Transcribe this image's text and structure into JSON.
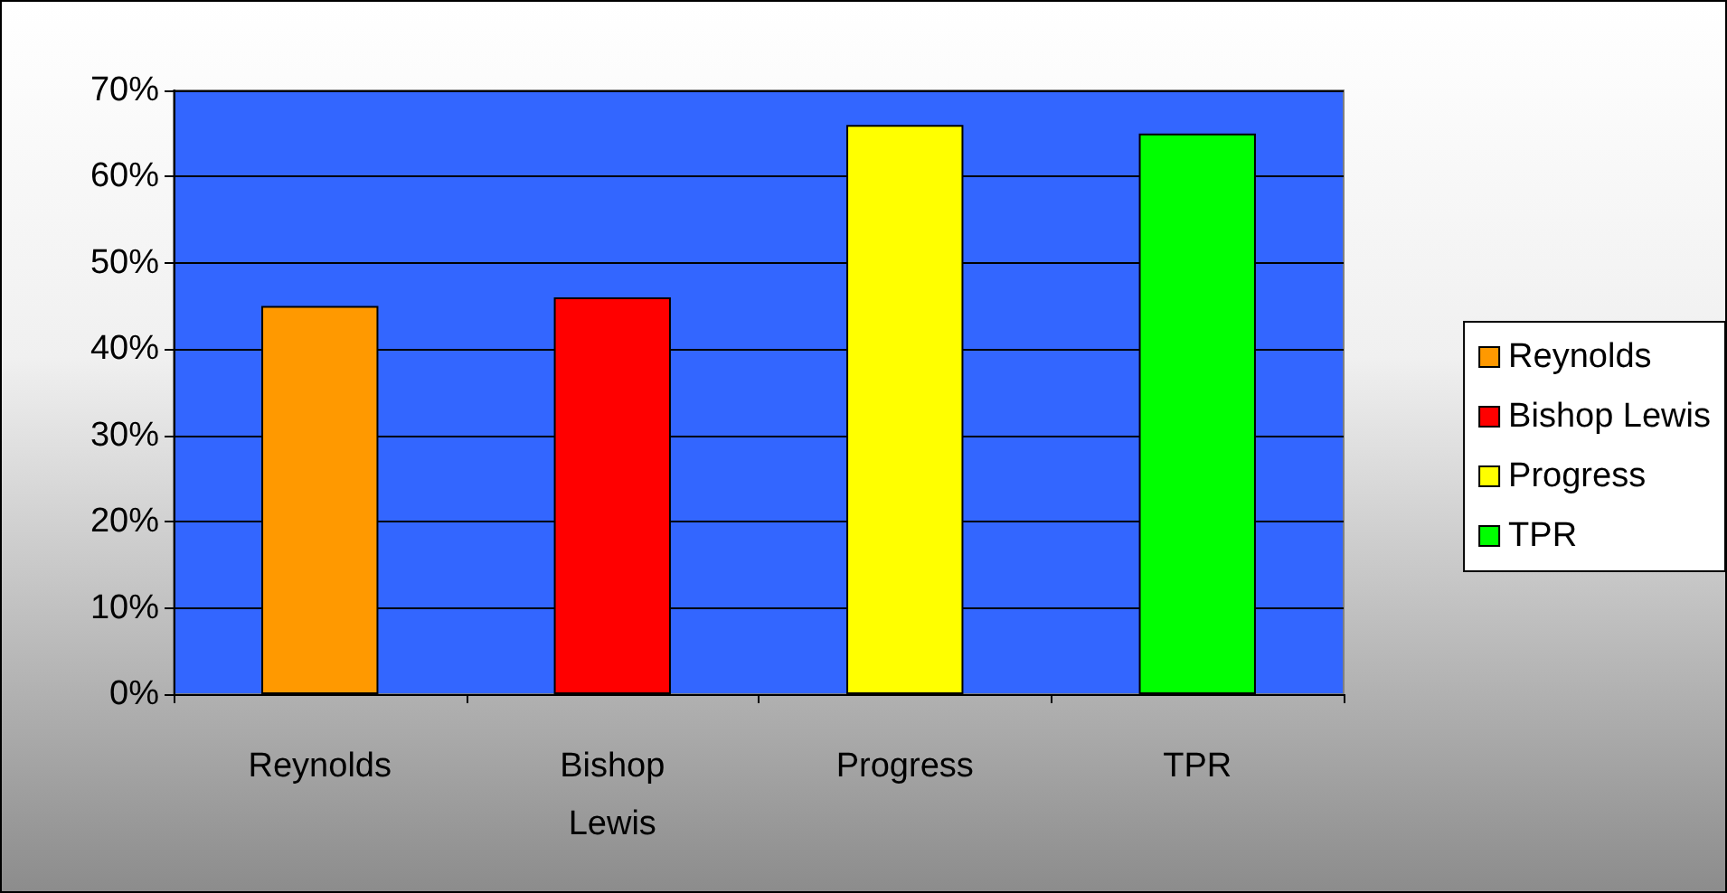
{
  "chart_data": {
    "type": "bar",
    "categories": [
      "Reynolds",
      "Bishop Lewis",
      "Progress",
      "TPR"
    ],
    "series": [
      {
        "name": "Reynolds",
        "color": "#ff9900",
        "values": [
          45,
          null,
          null,
          null
        ]
      },
      {
        "name": "Bishop Lewis",
        "color": "#ff0000",
        "values": [
          null,
          46,
          null,
          null
        ]
      },
      {
        "name": "Progress",
        "color": "#ffff00",
        "values": [
          null,
          null,
          66,
          null
        ]
      },
      {
        "name": "TPR",
        "color": "#00ff00",
        "values": [
          null,
          null,
          null,
          65
        ]
      }
    ],
    "ylim": [
      0,
      70
    ],
    "yticks": [
      {
        "value": 0,
        "label": "0%"
      },
      {
        "value": 10,
        "label": "10%"
      },
      {
        "value": 20,
        "label": "20%"
      },
      {
        "value": 30,
        "label": "30%"
      },
      {
        "value": 40,
        "label": "40%"
      },
      {
        "value": 50,
        "label": "50%"
      },
      {
        "value": 60,
        "label": "60%"
      },
      {
        "value": 70,
        "label": "70%"
      }
    ],
    "grid": "y",
    "legend": "right"
  }
}
